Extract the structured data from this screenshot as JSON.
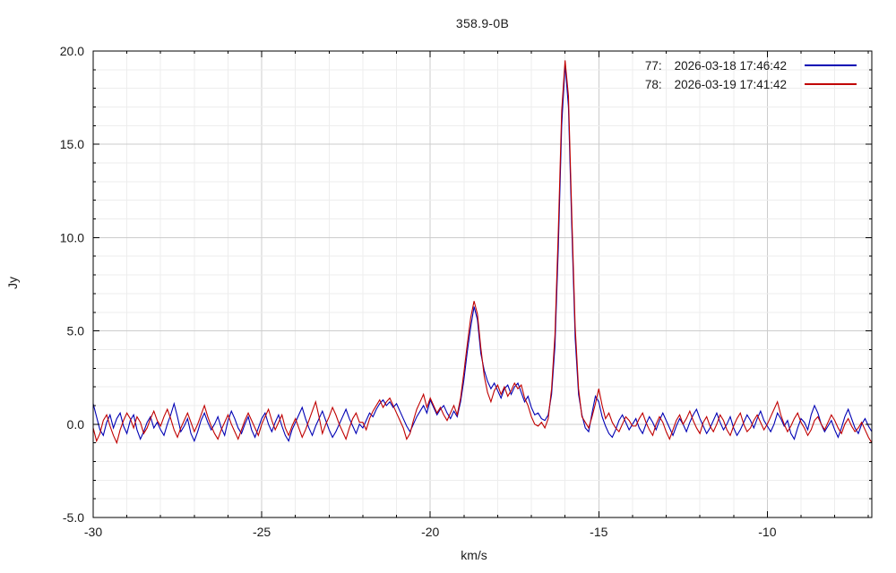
{
  "chart_data": {
    "type": "line",
    "title": "358.9-0B",
    "xlabel": "km/s",
    "ylabel": "Jy",
    "xlim": [
      -30,
      -6.9
    ],
    "ylim": [
      -5,
      20
    ],
    "grid": true,
    "legend_position": "top-right",
    "xticks": {
      "major": [
        -30,
        -25,
        -20,
        -15,
        -10
      ],
      "labels": [
        "-30",
        "-25",
        "-20",
        "-15",
        "-10"
      ],
      "minor_step": 1
    },
    "yticks": {
      "major": [
        -5,
        0,
        5,
        10,
        15,
        20
      ],
      "labels": [
        "-5.0",
        "0.0",
        "5.0",
        "10.0",
        "15.0",
        "20.0"
      ],
      "minor_step": 1
    },
    "x_start": -30.0,
    "x_step": 0.1,
    "series": [
      {
        "index_label": "77:",
        "timestamp": "2026-03-18 17:46:42",
        "color": "#0000b4",
        "values": [
          1.1,
          0.4,
          -0.3,
          -0.6,
          0.1,
          0.5,
          -0.2,
          0.3,
          0.6,
          -0.1,
          -0.5,
          0.2,
          0.5,
          -0.3,
          -0.8,
          -0.4,
          0.1,
          0.4,
          -0.2,
          0.1,
          -0.3,
          -0.6,
          0.0,
          0.5,
          1.1,
          0.4,
          -0.4,
          -0.1,
          0.3,
          -0.5,
          -0.9,
          -0.4,
          0.2,
          0.6,
          0.1,
          -0.3,
          0.0,
          0.4,
          -0.2,
          -0.6,
          0.2,
          0.7,
          0.3,
          -0.2,
          -0.5,
          0.0,
          0.4,
          -0.3,
          -0.7,
          -0.2,
          0.3,
          0.6,
          0.0,
          -0.4,
          0.1,
          0.5,
          -0.1,
          -0.6,
          -0.9,
          -0.3,
          0.1,
          0.5,
          0.9,
          0.3,
          -0.2,
          -0.6,
          -0.1,
          0.3,
          0.7,
          0.2,
          -0.3,
          -0.7,
          -0.4,
          0.0,
          0.4,
          0.8,
          0.3,
          -0.1,
          -0.5,
          0.0,
          -0.2,
          0.2,
          0.6,
          0.4,
          0.8,
          1.1,
          1.3,
          1.0,
          1.2,
          0.9,
          1.1,
          0.7,
          0.3,
          -0.1,
          -0.4,
          0.0,
          0.4,
          0.7,
          1.0,
          0.6,
          1.3,
          0.9,
          0.5,
          0.8,
          1.0,
          0.6,
          0.3,
          0.7,
          0.4,
          1.2,
          2.4,
          3.9,
          5.2,
          6.3,
          5.6,
          3.8,
          2.9,
          2.3,
          1.9,
          2.2,
          1.8,
          1.4,
          1.9,
          2.1,
          1.6,
          2.0,
          2.2,
          1.7,
          1.2,
          1.5,
          0.9,
          0.5,
          0.6,
          0.3,
          0.2,
          0.5,
          1.6,
          4.2,
          9.5,
          16.0,
          19.3,
          17.0,
          10.5,
          4.6,
          1.6,
          0.5,
          -0.2,
          -0.4,
          0.6,
          1.5,
          1.2,
          0.4,
          -0.1,
          -0.5,
          -0.7,
          -0.3,
          0.2,
          0.5,
          0.1,
          -0.3,
          0.0,
          0.3,
          -0.2,
          -0.5,
          0.0,
          0.4,
          0.1,
          -0.3,
          0.2,
          0.6,
          0.2,
          -0.2,
          -0.6,
          -0.1,
          0.3,
          0.0,
          -0.4,
          0.1,
          0.5,
          0.8,
          0.3,
          -0.1,
          -0.5,
          -0.2,
          0.2,
          0.6,
          0.1,
          -0.3,
          0.0,
          0.4,
          -0.2,
          -0.6,
          -0.3,
          0.1,
          0.5,
          0.2,
          -0.2,
          0.3,
          0.7,
          0.2,
          -0.1,
          -0.4,
          0.0,
          0.6,
          0.3,
          -0.1,
          0.2,
          -0.5,
          -0.8,
          -0.2,
          0.3,
          0.1,
          -0.3,
          0.5,
          1.0,
          0.6,
          0.0,
          -0.4,
          -0.1,
          0.2,
          -0.3,
          -0.7,
          -0.2,
          0.4,
          0.8,
          0.3,
          -0.2,
          -0.5,
          0.0,
          0.3,
          -0.1,
          -0.4
        ]
      },
      {
        "index_label": "78:",
        "timestamp": "2026-03-19 17:41:42",
        "color": "#c00000",
        "values": [
          -0.2,
          -0.9,
          -0.5,
          0.2,
          0.5,
          -0.1,
          -0.6,
          -1.0,
          -0.3,
          0.2,
          0.6,
          0.3,
          -0.2,
          0.4,
          0.1,
          -0.5,
          -0.2,
          0.3,
          0.7,
          0.2,
          -0.1,
          0.4,
          0.8,
          0.3,
          -0.3,
          -0.7,
          -0.2,
          0.2,
          0.6,
          0.1,
          -0.4,
          0.0,
          0.5,
          1.0,
          0.4,
          -0.1,
          -0.5,
          -0.8,
          -0.3,
          0.1,
          0.5,
          0.0,
          -0.4,
          -0.8,
          -0.3,
          0.2,
          0.6,
          0.2,
          -0.2,
          -0.6,
          0.0,
          0.4,
          0.8,
          0.2,
          -0.3,
          0.1,
          0.5,
          -0.2,
          -0.6,
          -0.1,
          0.3,
          -0.2,
          -0.7,
          -0.3,
          0.2,
          0.7,
          1.2,
          0.4,
          -0.5,
          0.0,
          0.4,
          0.9,
          0.5,
          0.0,
          -0.4,
          -0.8,
          -0.2,
          0.3,
          0.6,
          0.1,
          0.1,
          -0.3,
          0.3,
          0.7,
          1.0,
          1.3,
          0.9,
          1.2,
          1.4,
          1.0,
          0.6,
          0.2,
          -0.2,
          -0.8,
          -0.5,
          0.2,
          0.8,
          1.2,
          1.6,
          0.9,
          1.4,
          1.0,
          0.6,
          0.9,
          0.5,
          0.2,
          0.6,
          1.0,
          0.5,
          1.4,
          2.8,
          4.3,
          5.7,
          6.6,
          5.9,
          4.1,
          2.6,
          1.7,
          1.2,
          1.8,
          2.1,
          1.6,
          2.0,
          1.5,
          1.8,
          2.2,
          1.9,
          2.1,
          1.4,
          1.0,
          0.4,
          0.0,
          -0.1,
          0.1,
          -0.2,
          0.3,
          1.9,
          4.8,
          10.4,
          16.8,
          19.5,
          17.6,
          11.2,
          5.2,
          1.9,
          0.4,
          0.1,
          -0.2,
          0.4,
          1.1,
          1.9,
          1.0,
          0.3,
          0.6,
          0.1,
          -0.2,
          -0.4,
          0.0,
          0.4,
          0.2,
          -0.1,
          -0.1,
          0.3,
          0.6,
          0.1,
          -0.3,
          -0.6,
          0.0,
          0.4,
          0.1,
          -0.4,
          -0.8,
          -0.3,
          0.2,
          0.5,
          0.0,
          0.3,
          0.7,
          0.2,
          -0.2,
          -0.5,
          0.1,
          0.4,
          -0.1,
          -0.4,
          0.0,
          0.5,
          0.2,
          -0.3,
          -0.6,
          -0.1,
          0.3,
          0.6,
          0.0,
          -0.4,
          -0.2,
          0.2,
          0.5,
          0.1,
          -0.3,
          0.0,
          0.4,
          0.8,
          1.2,
          0.5,
          0.0,
          -0.4,
          -0.1,
          0.3,
          0.6,
          0.1,
          -0.2,
          -0.6,
          -0.3,
          0.2,
          0.4,
          0.0,
          -0.3,
          0.1,
          0.5,
          0.2,
          -0.2,
          -0.5,
          0.0,
          0.3,
          -0.1,
          -0.4,
          -0.2,
          0.1,
          -0.3,
          -0.7,
          -1.0
        ]
      }
    ],
    "style": {
      "grid_minor_color": "#ededed",
      "grid_major_color": "#cccccc",
      "axis_color": "#000000"
    }
  }
}
